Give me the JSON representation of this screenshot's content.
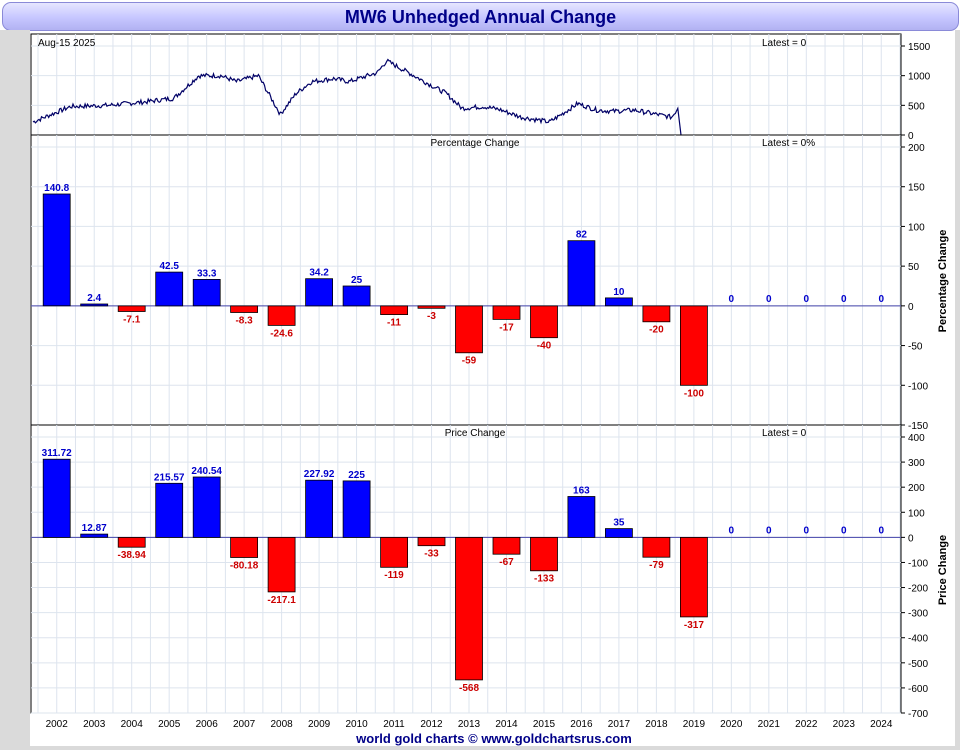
{
  "title": "MW6 Unhedged Annual Change",
  "footer": "world gold charts © www.goldchartsrus.com",
  "colors": {
    "positive": "#0000ff",
    "negative": "#ff0000",
    "price_line": "#000066",
    "label_pos": "#0000cc",
    "label_neg": "#cc0000"
  },
  "chart_data": [
    {
      "type": "line",
      "panel": "price",
      "date_label": "Aug-15  2025",
      "latest_label": "Latest = 0",
      "ylim": [
        0,
        1500
      ],
      "yticks": [
        0,
        500,
        1000,
        1500
      ],
      "x": [
        "2002-01",
        "2003-01",
        "2004-01",
        "2005-01",
        "2005-10",
        "2006-06",
        "2007-01",
        "2007-06",
        "2008-01",
        "2008-08",
        "2009-01",
        "2009-06",
        "2010-01",
        "2010-06",
        "2011-03",
        "2011-06",
        "2012-01",
        "2012-06",
        "2013-01",
        "2013-06",
        "2014-01",
        "2014-06",
        "2015-01",
        "2015-10",
        "2016-01",
        "2016-07",
        "2017-01",
        "2017-06",
        "2018-01",
        "2018-06",
        "2019-01",
        "2019-03",
        "2019-04"
      ],
      "values": [
        220,
        480,
        500,
        560,
        620,
        1000,
        1000,
        900,
        1000,
        350,
        700,
        900,
        950,
        900,
        1050,
        1250,
        1050,
        900,
        700,
        450,
        480,
        430,
        300,
        220,
        320,
        530,
        420,
        400,
        420,
        370,
        300,
        450,
        0
      ]
    },
    {
      "type": "bar",
      "panel": "percentage",
      "title": "Percentage Change",
      "latest_label": "Latest = 0%",
      "ylabel": "Percentage Change",
      "ylim": [
        -150,
        200
      ],
      "yticks": [
        -150,
        -100,
        -50,
        0,
        50,
        100,
        150,
        200
      ],
      "categories": [
        "2002",
        "2003",
        "2004",
        "2005",
        "2006",
        "2007",
        "2008",
        "2009",
        "2010",
        "2011",
        "2012",
        "2013",
        "2014",
        "2015",
        "2016",
        "2017",
        "2018",
        "2019",
        "2020",
        "2021",
        "2022",
        "2023",
        "2024"
      ],
      "values": [
        140.8,
        2.4,
        -7.1,
        42.5,
        33.3,
        -8.3,
        -24.6,
        34.2,
        25,
        -11,
        -3,
        -59,
        -17,
        -40,
        82,
        10,
        -20,
        -100,
        0,
        0,
        0,
        0,
        0
      ],
      "labels": [
        "140.8",
        "2.4",
        "-7.1",
        "42.5",
        "33.3",
        "-8.3",
        "-24.6",
        "34.2",
        "25",
        "-11",
        "-3",
        "-59",
        "-17",
        "-40",
        "82",
        "10",
        "-20",
        "-100",
        "0",
        "0",
        "0",
        "0",
        "0"
      ]
    },
    {
      "type": "bar",
      "panel": "price-change",
      "title": "Price Change",
      "latest_label": "Latest = 0",
      "ylabel": "Price Change",
      "ylim": [
        -700,
        400
      ],
      "yticks": [
        -700,
        -600,
        -500,
        -400,
        -300,
        -200,
        -100,
        0,
        100,
        200,
        300,
        400
      ],
      "categories": [
        "2002",
        "2003",
        "2004",
        "2005",
        "2006",
        "2007",
        "2008",
        "2009",
        "2010",
        "2011",
        "2012",
        "2013",
        "2014",
        "2015",
        "2016",
        "2017",
        "2018",
        "2019",
        "2020",
        "2021",
        "2022",
        "2023",
        "2024"
      ],
      "values": [
        311.72,
        12.87,
        -38.94,
        215.57,
        240.54,
        -80.18,
        -217.1,
        227.92,
        225,
        -119,
        -33,
        -568,
        -67,
        -133,
        163,
        35,
        -79,
        -317,
        0,
        0,
        0,
        0,
        0
      ],
      "labels": [
        "311.72",
        "12.87",
        "-38.94",
        "215.57",
        "240.54",
        "-80.18",
        "-217.1",
        "227.92",
        "225",
        "-119",
        "-33",
        "-568",
        "-67",
        "-133",
        "163",
        "35",
        "-79",
        "-317",
        "0",
        "0",
        "0",
        "0",
        "0"
      ]
    }
  ]
}
